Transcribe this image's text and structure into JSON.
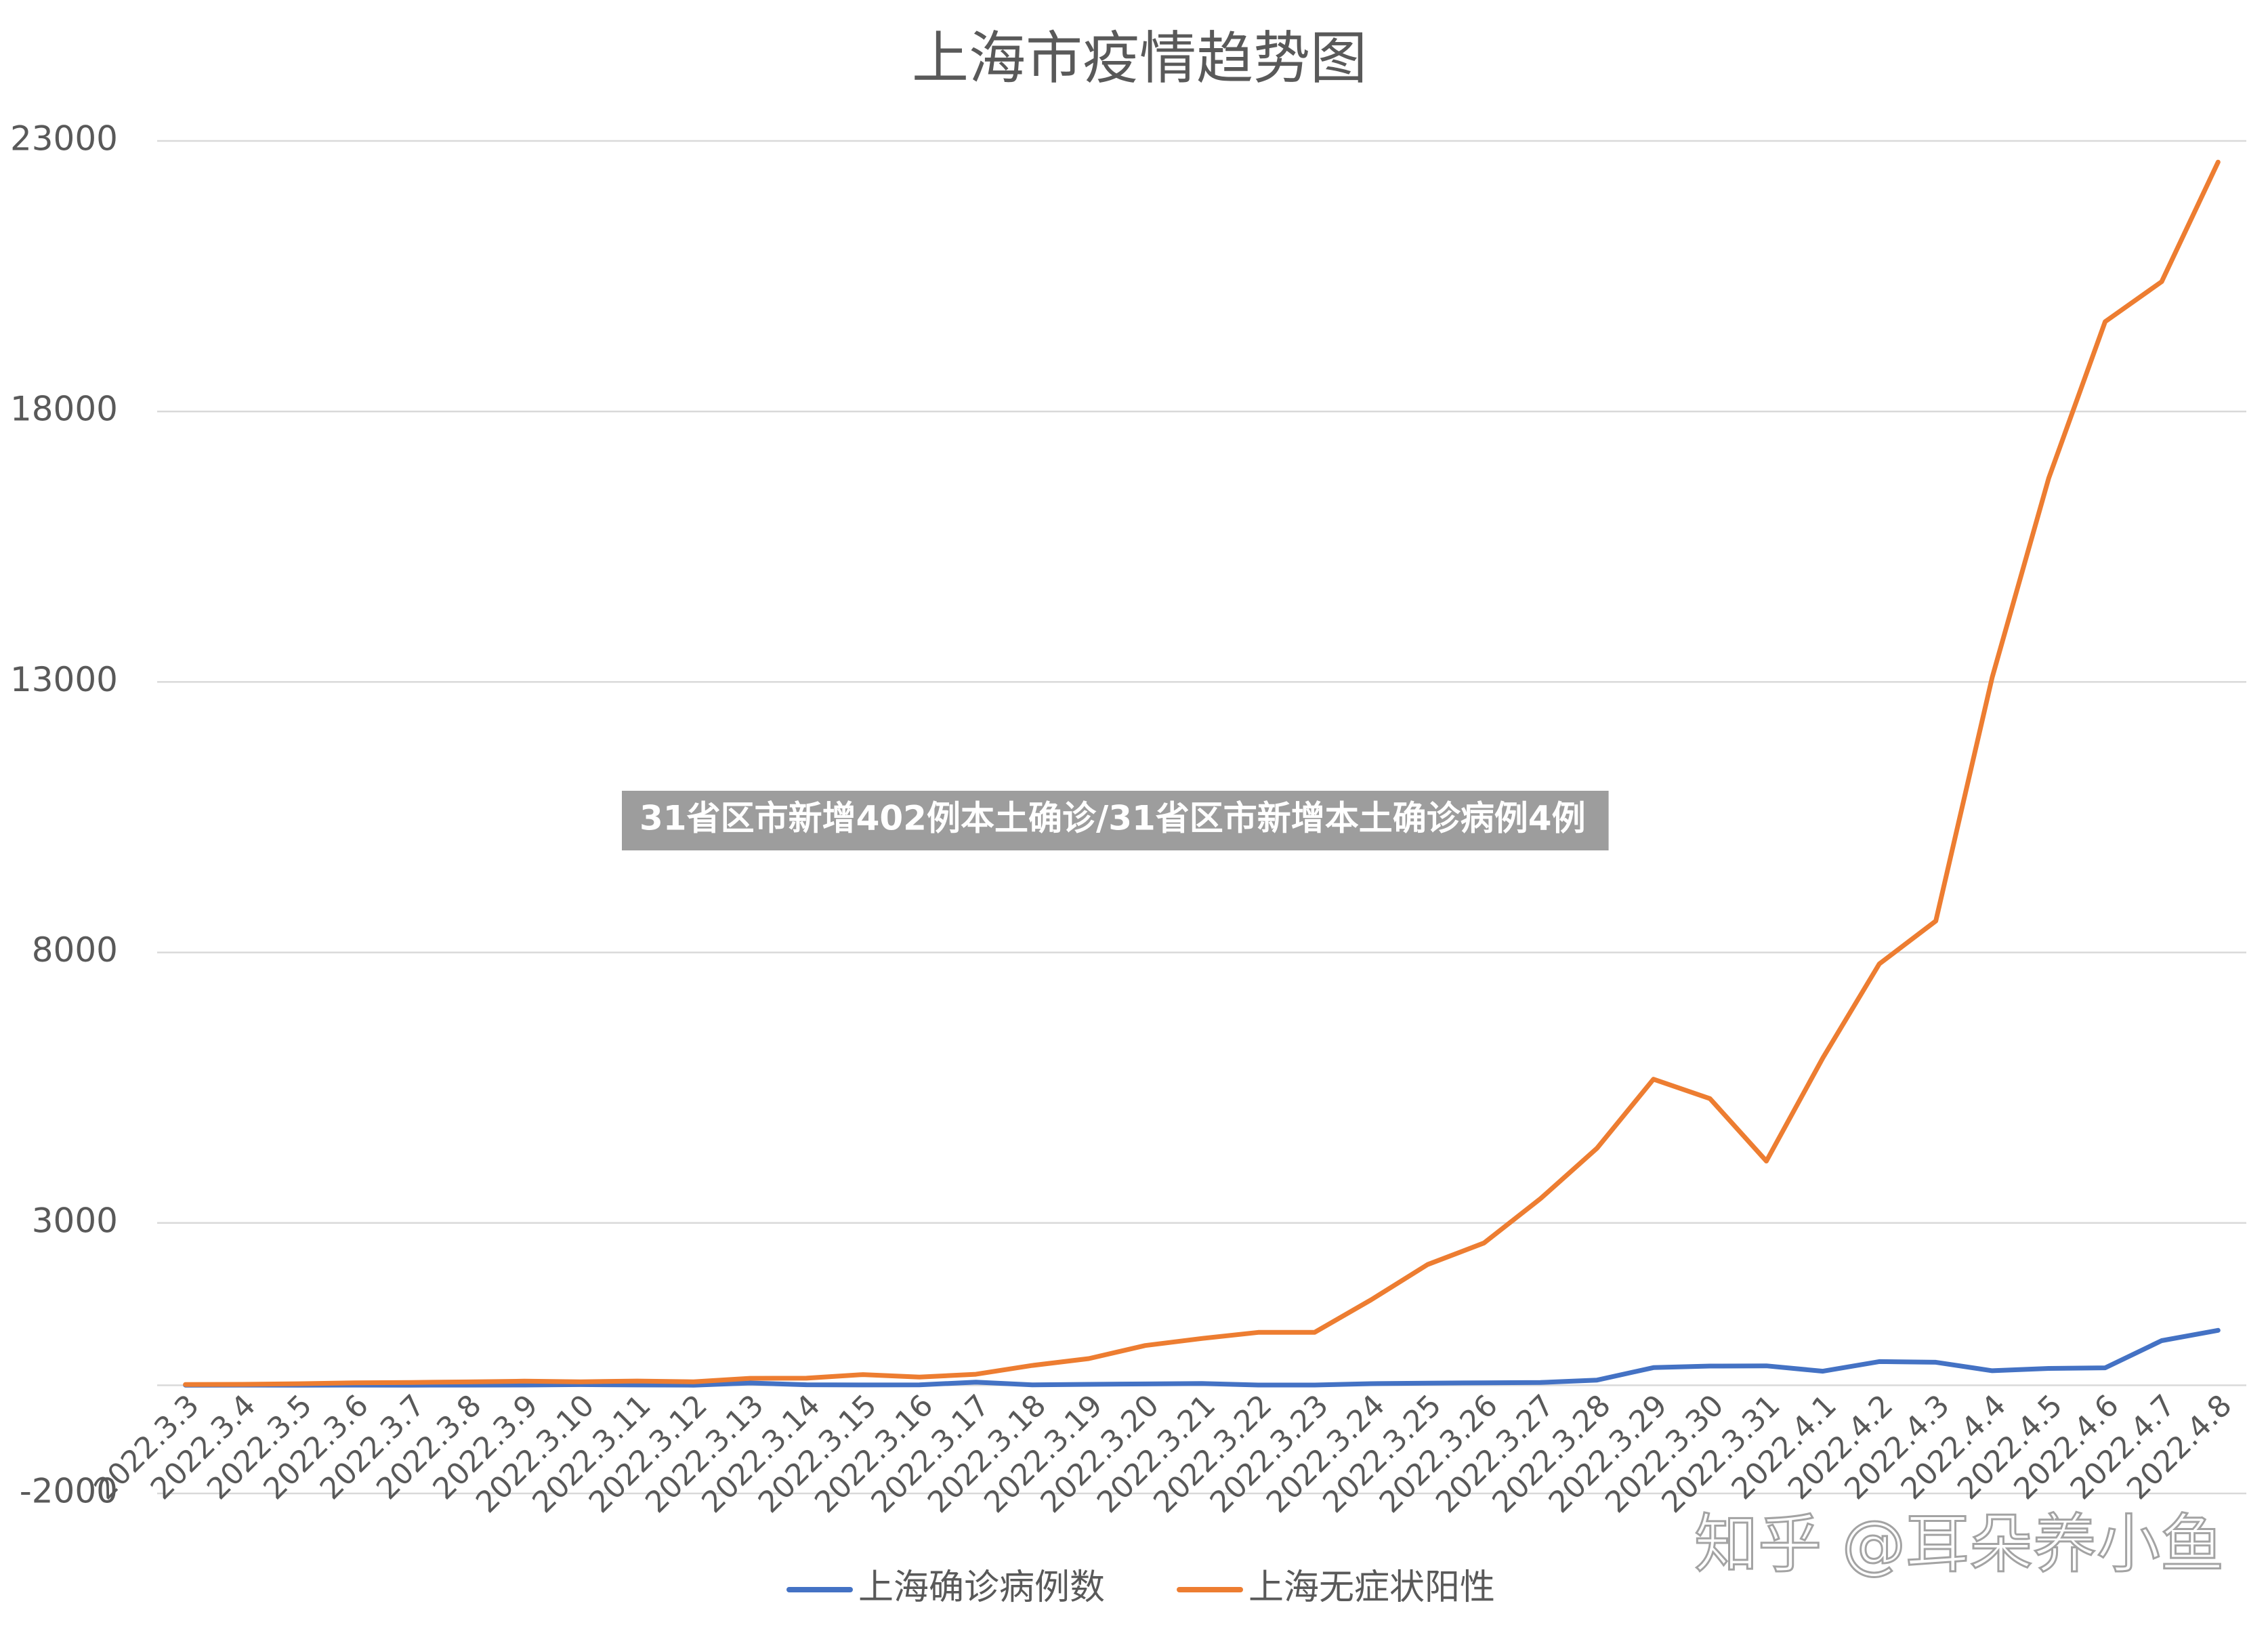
{
  "chart_data": {
    "type": "line",
    "title": "上海市疫情趋势图",
    "categories": [
      "2022.3.3",
      "2022.3.4",
      "2022.3.5",
      "2022.3.6",
      "2022.3.7",
      "2022.3.8",
      "2022.3.9",
      "2022.3.10",
      "2022.3.11",
      "2022.3.12",
      "2022.3.13",
      "2022.3.14",
      "2022.3.15",
      "2022.3.16",
      "2022.3.17",
      "2022.3.18",
      "2022.3.19",
      "2022.3.20",
      "2022.3.21",
      "2022.3.22",
      "2022.3.23",
      "2022.3.24",
      "2022.3.25",
      "2022.3.26",
      "2022.3.27",
      "2022.3.28",
      "2022.3.29",
      "2022.3.30",
      "2022.3.31",
      "2022.4.1",
      "2022.4.2",
      "2022.4.3",
      "2022.4.4",
      "2022.4.5",
      "2022.4.6",
      "2022.4.7",
      "2022.4.8"
    ],
    "series": [
      {
        "name": "上海确诊病例数",
        "color": "#4472c4",
        "values": [
          2,
          3,
          0,
          3,
          1,
          3,
          4,
          11,
          5,
          1,
          41,
          9,
          5,
          8,
          57,
          8,
          17,
          24,
          31,
          4,
          4,
          29,
          38,
          45,
          50,
          96,
          326,
          355,
          358,
          260,
          438,
          425,
          268,
          311,
          322,
          824,
          1015
        ]
      },
      {
        "name": "上海无症状阳性",
        "color": "#ed7d31",
        "values": [
          14,
          16,
          28,
          45,
          51,
          62,
          76,
          64,
          78,
          64,
          128,
          130,
          197,
          150,
          203,
          366,
          492,
          734,
          865,
          977,
          979,
          1580,
          2231,
          2631,
          3450,
          4381,
          5656,
          5298,
          4144,
          6051,
          7788,
          8581,
          13086,
          16766,
          19660,
          20398,
          22609
        ]
      }
    ],
    "ylim": [
      -2000,
      23000
    ],
    "yticks": [
      -2000,
      3000,
      8000,
      13000,
      18000,
      23000
    ],
    "grid": true,
    "legend": "bottom"
  },
  "banner": "31省区市新增402例本土确诊/31省区市新增本土确诊病例4例",
  "watermark": "知乎 @耳朵养小鱼"
}
